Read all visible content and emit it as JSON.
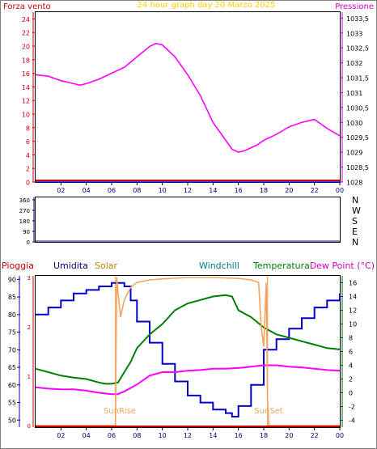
{
  "colors": {
    "wind": "#cc0000",
    "pressure": "#ff00ff",
    "title": "#ffcc00",
    "axis_pressure": "#cc00cc",
    "dir_axis": "#000080",
    "rain": "#cc0000",
    "humidity": "#0000cc",
    "solar": "#f4a460",
    "windchill": "#008080",
    "temperature": "#008000",
    "dewpoint": "#ff00ff",
    "temp_axis": "#006400",
    "frame": "#000000"
  },
  "chart_data": [
    {
      "type": "line",
      "title": "24 hour graph day   20 Marzo 2025",
      "left_axis_label": "Forza vento",
      "right_axis_label": "Pressione",
      "x_ticks": [
        "02",
        "04",
        "06",
        "08",
        "10",
        "12",
        "14",
        "16",
        "18",
        "20",
        "22",
        "00"
      ],
      "y_left_ticks": [
        "0",
        "2",
        "4",
        "6",
        "8",
        "10",
        "12",
        "14",
        "16",
        "18",
        "20",
        "22",
        "24"
      ],
      "y_left_range": [
        0,
        25
      ],
      "y_right_ticks": [
        "1028",
        "1028,5",
        "1029",
        "1029,5",
        "1030",
        "1030,5",
        "1031",
        "1031,5",
        "1032",
        "1032,5",
        "1033",
        "1033,5"
      ],
      "y_right_range": [
        1028,
        1033.7
      ],
      "series": [
        {
          "name": "Pressione",
          "axis": "right",
          "x": [
            0,
            1,
            2,
            3,
            3.5,
            4,
            5,
            6,
            7,
            8,
            9,
            9.5,
            10,
            11,
            12,
            13,
            14,
            15,
            15.5,
            16,
            16.5,
            17,
            17.5,
            18,
            19,
            20,
            21,
            22,
            23,
            24
          ],
          "y": [
            1031.6,
            1031.55,
            1031.4,
            1031.3,
            1031.25,
            1031.3,
            1031.45,
            1031.65,
            1031.85,
            1032.2,
            1032.55,
            1032.65,
            1032.6,
            1032.2,
            1031.6,
            1030.9,
            1030.0,
            1029.4,
            1029.1,
            1029.0,
            1029.05,
            1029.15,
            1029.25,
            1029.4,
            1029.6,
            1029.85,
            1030.0,
            1030.1,
            1029.8,
            1029.55
          ]
        },
        {
          "name": "Forza vento",
          "axis": "left",
          "x": [
            0,
            24
          ],
          "y": [
            0,
            0
          ]
        }
      ]
    },
    {
      "type": "line",
      "title": "",
      "y_left_ticks": [
        "0",
        "90",
        "180",
        "270",
        "360"
      ],
      "y_left_range": [
        0,
        360
      ],
      "y_right_ticks": [
        "N",
        "E",
        "S",
        "W",
        "N"
      ],
      "series": [
        {
          "name": "",
          "x": [
            0,
            24
          ],
          "y": [
            0,
            0
          ]
        }
      ]
    },
    {
      "type": "line",
      "title": "",
      "header_labels": {
        "rain": "Pioggia",
        "humidity": "Umidita",
        "solar": "Solar",
        "windchill": "Windchill",
        "temperature": "Temperatura",
        "dewpoint": "Dew Point (°C)"
      },
      "x_ticks": [
        "02",
        "04",
        "06",
        "08",
        "10",
        "12",
        "14",
        "16",
        "18",
        "20",
        "22",
        "00"
      ],
      "y_humidity_ticks": [
        "50",
        "55",
        "60",
        "65",
        "70",
        "75",
        "80",
        "85",
        "90"
      ],
      "y_humidity_range": [
        48,
        91
      ],
      "y_rain_ticks": [
        "0",
        "1",
        "2",
        "3"
      ],
      "y_rain_range": [
        0,
        3
      ],
      "y_temp_ticks": [
        "-4",
        "-2",
        "0",
        "2",
        "4",
        "6",
        "8",
        "10",
        "12",
        "14",
        "16"
      ],
      "y_temp_range": [
        -5,
        17
      ],
      "annotations": [
        "SunRise",
        "SunSet"
      ],
      "sunrise_x": 6.3,
      "sunset_x": 18.3,
      "series": [
        {
          "name": "Umidita",
          "axis": "humidity",
          "x": [
            0,
            1,
            2,
            3,
            4,
            5,
            6,
            6.8,
            7,
            7.5,
            8,
            9,
            10,
            11,
            12,
            13,
            14,
            15,
            15.5,
            16,
            17,
            18,
            19,
            20,
            21,
            22,
            23,
            24
          ],
          "y": [
            80,
            82,
            84,
            86,
            87,
            88,
            89,
            89,
            88,
            84,
            78,
            72,
            66,
            61,
            57,
            55,
            53,
            52,
            51,
            54,
            60,
            70,
            73,
            76,
            79,
            82,
            84,
            86
          ]
        },
        {
          "name": "Temperatura",
          "axis": "temp",
          "x": [
            0,
            1,
            2,
            3,
            4,
            5,
            5.5,
            6,
            6.5,
            7,
            7.5,
            8,
            9,
            10,
            11,
            12,
            13,
            14,
            15,
            15.5,
            16,
            17,
            18,
            19,
            20,
            21,
            22,
            23,
            24
          ],
          "y": [
            3.5,
            3.0,
            2.5,
            2.2,
            2.0,
            1.5,
            1.3,
            1.3,
            1.5,
            3.0,
            4.5,
            6.5,
            8.5,
            10.0,
            12.0,
            13.0,
            13.5,
            14.0,
            14.2,
            14.0,
            12.0,
            11.0,
            9.5,
            8.5,
            8.0,
            7.5,
            7.0,
            6.5,
            6.3
          ]
        },
        {
          "name": "Dew Point",
          "axis": "temp",
          "x": [
            0,
            1,
            2,
            3,
            4,
            5,
            6,
            6.5,
            7,
            8,
            9,
            10,
            11,
            12,
            13,
            14,
            15,
            16,
            17,
            18,
            19,
            20,
            21,
            22,
            23,
            24
          ],
          "y": [
            0.8,
            0.6,
            0.5,
            0.5,
            0.3,
            0.0,
            -0.2,
            -0.2,
            0.2,
            1.2,
            2.5,
            3.0,
            3.0,
            3.2,
            3.3,
            3.5,
            3.5,
            3.6,
            3.8,
            4.0,
            4.0,
            3.8,
            3.7,
            3.5,
            3.3,
            3.2
          ]
        },
        {
          "name": "Solar",
          "axis": "rain",
          "x": [
            0,
            6.3,
            6.4,
            6.5,
            6.7,
            7,
            7.5,
            8,
            9,
            10,
            12,
            14,
            16,
            17,
            17.6,
            17.8,
            18.0,
            18.2,
            18.3,
            18.4,
            24
          ],
          "y": [
            0,
            0,
            3.0,
            2.7,
            2.2,
            2.55,
            2.8,
            2.9,
            2.95,
            2.97,
            3.0,
            3.0,
            2.98,
            2.95,
            2.9,
            2.0,
            1.6,
            2.9,
            0.5,
            0,
            0
          ]
        },
        {
          "name": "Pioggia",
          "axis": "rain",
          "x": [
            0,
            24
          ],
          "y": [
            0,
            0
          ]
        }
      ]
    }
  ]
}
